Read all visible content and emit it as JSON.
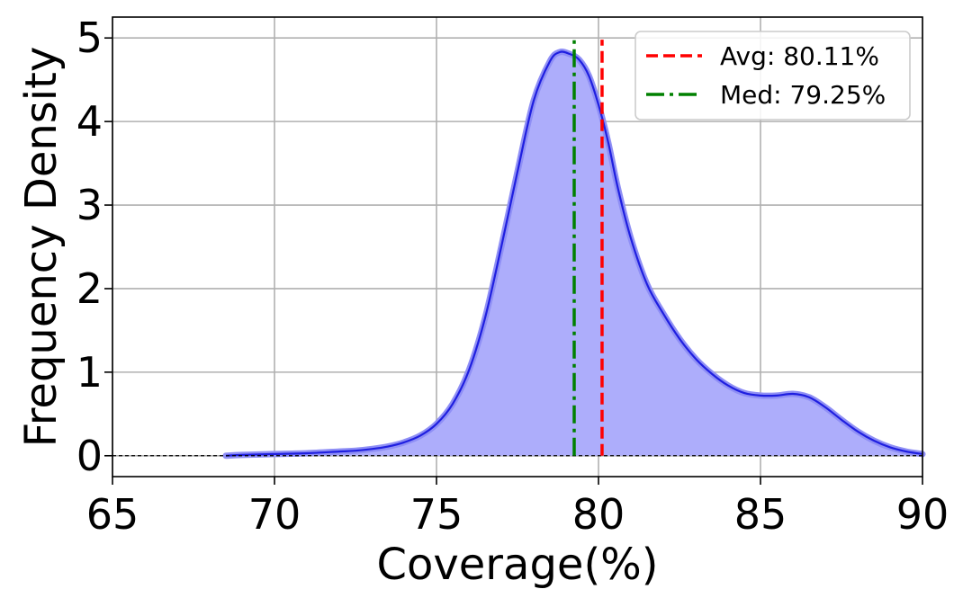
{
  "chart_data": {
    "type": "area",
    "title": "",
    "xlabel": "Coverage(%)",
    "ylabel": "Frequency Density",
    "xlim": [
      65,
      90
    ],
    "ylim": [
      -0.25,
      5.25
    ],
    "xticks": [
      65,
      70,
      75,
      80,
      85,
      90
    ],
    "yticks": [
      0,
      1,
      2,
      3,
      4,
      5
    ],
    "grid": true,
    "legend_position": "top-right",
    "colors": {
      "density_line": "#1f1fe0",
      "density_fill": "#adadfb",
      "avg_line": "#ff0000",
      "median_line": "#008000",
      "baseline": "#000000",
      "grid": "#b0b0b0"
    },
    "series": [
      {
        "kind": "density",
        "x": [
          68.5,
          69,
          70,
          71,
          72,
          72.5,
          73,
          73.5,
          74,
          74.5,
          75,
          75.5,
          76,
          76.5,
          77,
          77.5,
          78,
          78.5,
          78.8,
          79.1,
          79.4,
          79.7,
          80,
          80.3,
          80.6,
          81,
          81.5,
          82,
          82.5,
          83,
          83.5,
          84,
          84.5,
          85,
          85.5,
          86,
          86.5,
          87,
          87.5,
          88,
          88.5,
          89,
          89.5,
          90
        ],
        "y": [
          0.0,
          0.01,
          0.02,
          0.03,
          0.05,
          0.06,
          0.08,
          0.11,
          0.16,
          0.24,
          0.38,
          0.62,
          1.02,
          1.65,
          2.5,
          3.4,
          4.25,
          4.72,
          4.83,
          4.81,
          4.74,
          4.55,
          4.2,
          3.75,
          3.2,
          2.6,
          2.05,
          1.7,
          1.4,
          1.16,
          0.98,
          0.84,
          0.75,
          0.72,
          0.72,
          0.74,
          0.7,
          0.58,
          0.43,
          0.29,
          0.18,
          0.1,
          0.05,
          0.02
        ]
      },
      {
        "kind": "vline",
        "name": "Avg: 80.11%",
        "x": 80.11,
        "style": "dashed"
      },
      {
        "kind": "vline",
        "name": "Med: 79.25%",
        "x": 79.25,
        "style": "dashdot"
      }
    ],
    "legend": [
      {
        "label": "Avg: 80.11%",
        "color": "#ff0000",
        "style": "dashed"
      },
      {
        "label": "Med: 79.25%",
        "color": "#008000",
        "style": "dashdot"
      }
    ]
  }
}
